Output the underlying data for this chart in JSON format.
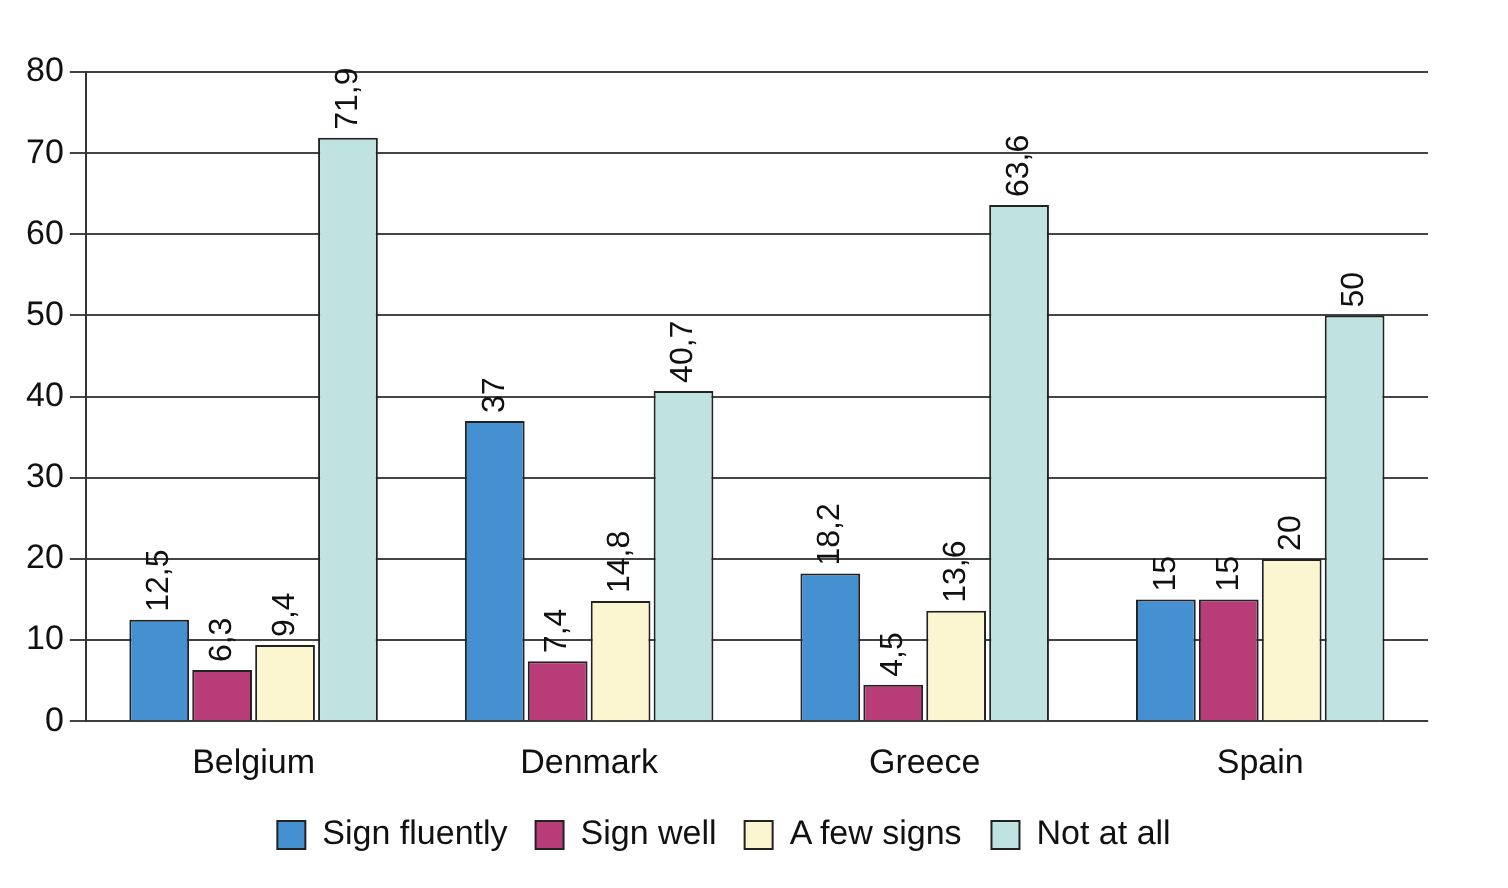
{
  "chart_data": {
    "type": "bar",
    "categories": [
      "Belgium",
      "Denmark",
      "Greece",
      "Spain"
    ],
    "series": [
      {
        "name": "Sign fluently",
        "color": "#4490d0",
        "values": [
          12.5,
          37,
          18.2,
          15
        ],
        "value_labels": [
          "12,5",
          "37",
          "18,2",
          "15"
        ]
      },
      {
        "name": "Sign well",
        "color": "#b83c78",
        "values": [
          6.3,
          7.4,
          4.5,
          15
        ],
        "value_labels": [
          "6,3",
          "7,4",
          "4,5",
          "15"
        ]
      },
      {
        "name": "A few signs",
        "color": "#fbf5d0",
        "values": [
          9.4,
          14.8,
          13.6,
          20
        ],
        "value_labels": [
          "9,4",
          "14,8",
          "13,6",
          "20"
        ]
      },
      {
        "name": "Not at all",
        "color": "#bfe3e0",
        "values": [
          71.9,
          40.7,
          63.6,
          50
        ],
        "value_labels": [
          "71,9",
          "40,7",
          "63,6",
          "50"
        ]
      }
    ],
    "ylim": [
      0,
      80
    ],
    "yticks": [
      0,
      10,
      20,
      30,
      40,
      50,
      60,
      70,
      80
    ],
    "grid": "y",
    "legend": "bottom"
  }
}
